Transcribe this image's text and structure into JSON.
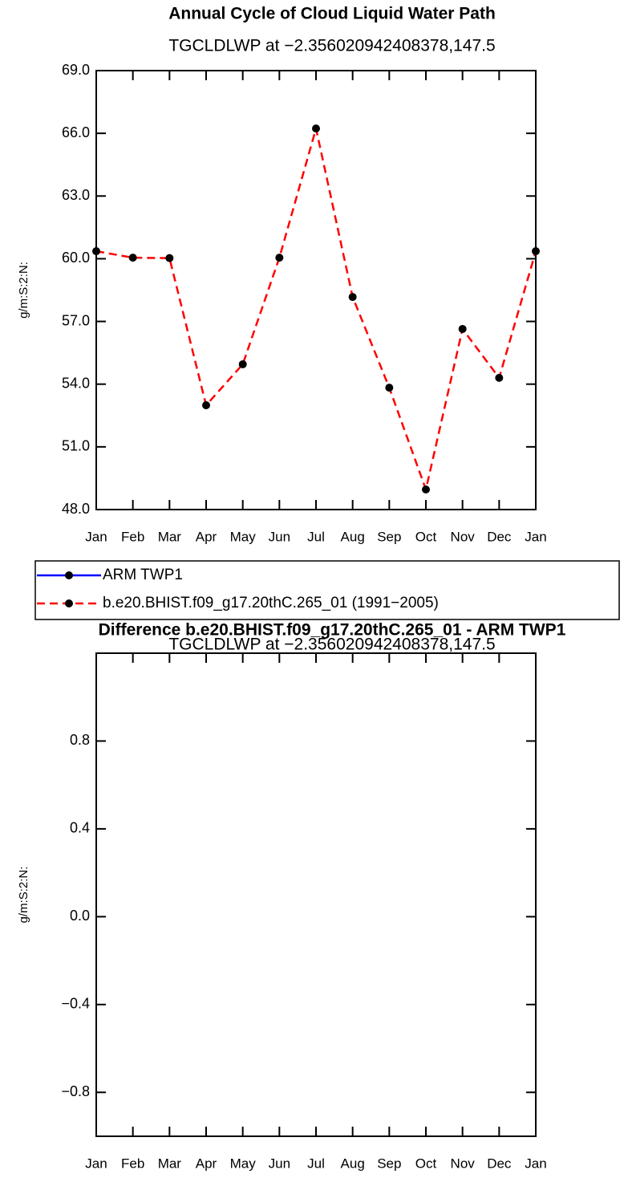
{
  "chart_data": [
    {
      "type": "line",
      "title": "Annual Cycle of Cloud Liquid Water Path",
      "subtitle": "TGCLDLWP at −2.356020942408378,147.5",
      "y_label": "g/m:S:2:N:",
      "categories": [
        "Jan",
        "Feb",
        "Mar",
        "Apr",
        "May",
        "Jun",
        "Jul",
        "Aug",
        "Sep",
        "Oct",
        "Nov",
        "Dec",
        "Jan"
      ],
      "ylim": [
        48,
        69
      ],
      "yticks": [
        {
          "value": 48,
          "label": "48.0"
        },
        {
          "value": 51,
          "label": "51.0"
        },
        {
          "value": 54,
          "label": "54.0"
        },
        {
          "value": 57,
          "label": "57.0"
        },
        {
          "value": 60,
          "label": "60.0"
        },
        {
          "value": 63,
          "label": "63.0"
        },
        {
          "value": 66,
          "label": "66.0"
        },
        {
          "value": 69,
          "label": "69.0"
        }
      ],
      "series": [
        {
          "name": "ARM TWP1",
          "color": "#0000ff",
          "line_style": "solid",
          "marker_color": "#000000",
          "values": [
            null,
            null,
            null,
            null,
            null,
            null,
            null,
            null,
            null,
            null,
            null,
            null,
            null
          ]
        },
        {
          "name": "b.e20.BHIST.f09_g17.20thC.265_01 (1991−2005)",
          "color": "#ff0000",
          "line_style": "dashed",
          "marker_color": "#000000",
          "values": [
            60.36,
            60.05,
            60.03,
            52.99,
            54.95,
            60.05,
            66.23,
            58.17,
            53.83,
            48.96,
            56.64,
            54.3,
            60.36
          ]
        }
      ]
    },
    {
      "type": "line",
      "title": "Difference b.e20.BHIST.f09_g17.20thC.265_01 - ARM TWP1",
      "subtitle": "TGCLDLWP at −2.356020942408378,147.5",
      "y_label": "g/m:S:2:N:",
      "categories": [
        "Jan",
        "Feb",
        "Mar",
        "Apr",
        "May",
        "Jun",
        "Jul",
        "Aug",
        "Sep",
        "Oct",
        "Nov",
        "Dec",
        "Jan"
      ],
      "ylim": [
        -1,
        1.2
      ],
      "yticks": [
        {
          "value": -0.8,
          "label": "−0.8"
        },
        {
          "value": -0.4,
          "label": "−0.4"
        },
        {
          "value": 0,
          "label": "0.0"
        },
        0.4,
        0.8
      ],
      "series": []
    }
  ]
}
